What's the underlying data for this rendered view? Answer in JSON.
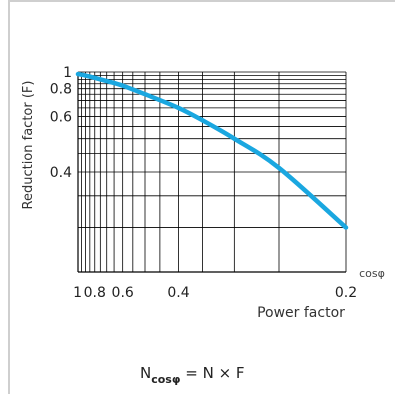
{
  "chart_data": {
    "type": "line",
    "x_axis": {
      "symbol": "cosφ",
      "label": "Power factor",
      "range": [
        1,
        0.2
      ],
      "scale": "reciprocal",
      "tick_labels": [
        "1",
        "0.8",
        "0.6",
        "0.4",
        "0.2"
      ],
      "tick_values": [
        1,
        0.8,
        0.6,
        0.4,
        0.2
      ]
    },
    "y_axis": {
      "label": "Reduction factor (F)",
      "range": [
        0.25,
        1
      ],
      "scale": "reciprocal",
      "tick_labels": [
        "1",
        "0.8",
        "0.6",
        "0.4"
      ],
      "tick_values": [
        1,
        0.8,
        0.6,
        0.4
      ]
    },
    "grid": true,
    "series": [
      {
        "color": "#1aa7e0",
        "x": [
          1,
          0.9,
          0.8,
          0.7,
          0.6,
          0.5,
          0.4,
          0.35,
          0.3,
          0.25,
          0.2
        ],
        "y": [
          0.97,
          0.95,
          0.92,
          0.88,
          0.83,
          0.75,
          0.65,
          0.58,
          0.5,
          0.41,
          0.3
        ]
      }
    ]
  },
  "formula": {
    "lhs": "N",
    "subscript": "cosφ",
    "rhs": "= N × F"
  }
}
